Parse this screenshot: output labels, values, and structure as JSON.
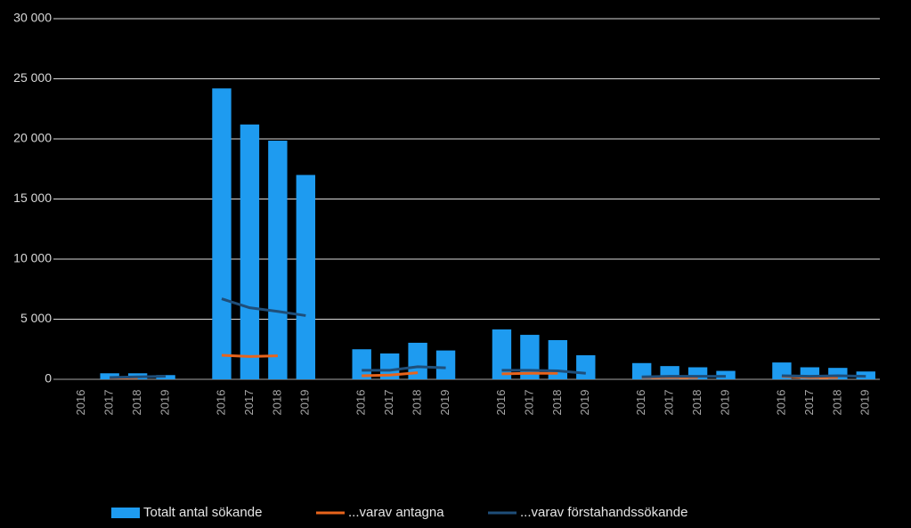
{
  "chart_data": {
    "type": "bar-line",
    "categories": [
      "2016",
      "2017",
      "2018",
      "2019",
      null,
      "2016",
      "2017",
      "2018",
      "2019",
      null,
      "2016",
      "2017",
      "2018",
      "2019",
      null,
      "2016",
      "2017",
      "2018",
      "2019",
      null,
      "2016",
      "2017",
      "2018",
      "2019",
      null,
      "2016",
      "2017",
      "2018",
      "2019"
    ],
    "series": [
      {
        "name": "Totalt antal sökande",
        "type": "bar",
        "color": "#1e9bf0",
        "values": [
          null,
          500,
          500,
          350,
          null,
          24200,
          21200,
          19850,
          17000,
          null,
          2500,
          2150,
          3040,
          2400,
          null,
          4150,
          3700,
          3260,
          2000,
          null,
          1350,
          1100,
          1000,
          700,
          null,
          1400,
          1000,
          950,
          650
        ]
      },
      {
        "name": "...varav antagna",
        "type": "line",
        "color": "#e8641c",
        "values": [
          null,
          120,
          130,
          null,
          null,
          2000,
          1900,
          1950,
          null,
          null,
          300,
          350,
          550,
          null,
          null,
          450,
          500,
          500,
          null,
          null,
          150,
          150,
          150,
          null,
          null,
          250,
          150,
          150,
          null
        ]
      },
      {
        "name": "...varav förstahandssökande",
        "type": "line",
        "color": "#1f4e79",
        "values": [
          null,
          150,
          200,
          250,
          null,
          6700,
          5950,
          5650,
          5300,
          null,
          750,
          750,
          1050,
          950,
          null,
          750,
          750,
          700,
          500,
          null,
          200,
          250,
          250,
          250,
          null,
          300,
          250,
          300,
          250
        ]
      }
    ],
    "ylim": [
      0,
      30000
    ],
    "yticks": [
      0,
      {
        "value": 5000,
        "label": "5 000"
      },
      {
        "value": 10000,
        "label": "10 000"
      },
      {
        "value": 15000,
        "label": "15 000"
      },
      {
        "value": 20000,
        "label": "20 000"
      },
      {
        "value": 25000,
        "label": "25 000"
      },
      {
        "value": 30000,
        "label": "30 000"
      }
    ],
    "grid": true,
    "legend": "bottom"
  }
}
